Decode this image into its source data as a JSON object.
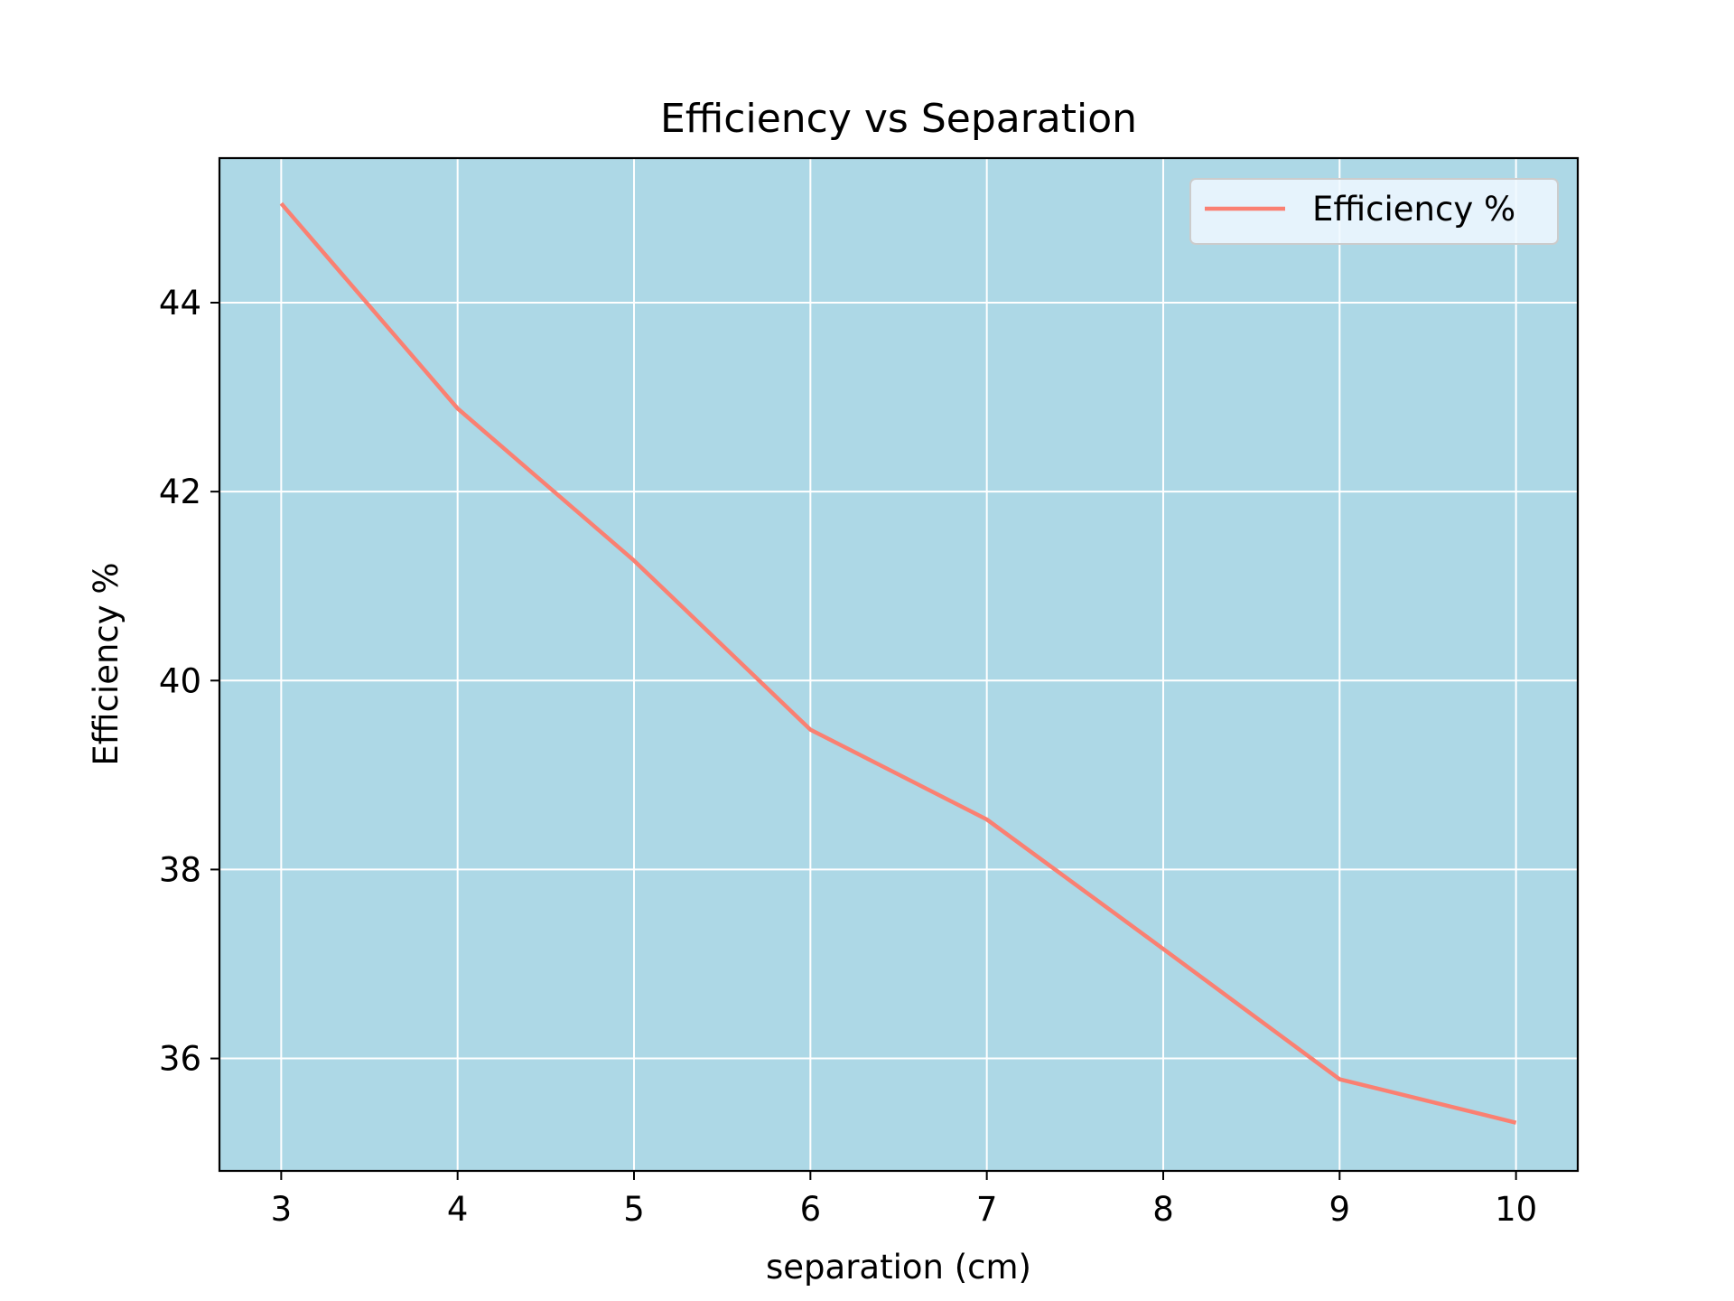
{
  "chart_data": {
    "type": "line",
    "title": "Efficiency vs Separation",
    "xlabel": "separation (cm)",
    "ylabel": "Efficiency %",
    "x": [
      3,
      4,
      5,
      6,
      7,
      8,
      9,
      10
    ],
    "series": [
      {
        "name": "Efficiency %",
        "color": "#fa8072",
        "values": [
          45.05,
          42.88,
          41.27,
          39.48,
          38.53,
          37.16,
          35.78,
          35.32
        ]
      }
    ],
    "xticks": [
      3,
      4,
      5,
      6,
      7,
      8,
      9,
      10
    ],
    "yticks": [
      36,
      38,
      40,
      42,
      44
    ],
    "xlim": [
      2.65,
      10.35
    ],
    "ylim": [
      34.81,
      45.53
    ],
    "grid": true,
    "legend_position": "upper right",
    "plot_background": "#add8e6",
    "grid_color": "#ffffff",
    "legend_background": "#f0f8ff"
  }
}
